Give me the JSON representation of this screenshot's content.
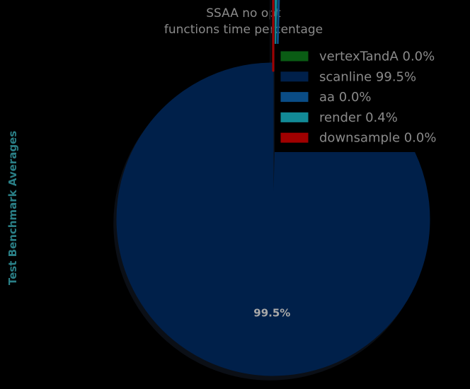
{
  "chart_data": {
    "type": "pie",
    "title": "SSAA no opt",
    "subtitle": "functions time percentage",
    "ylabel": "Test Benchmark Averages",
    "legend_position": "upper-right",
    "start_angle_deg": 90,
    "counterclockwise": true,
    "shadow": true,
    "slices": [
      {
        "name": "vertexTandA",
        "value": 0.0,
        "label": "0.0%",
        "legend": "vertexTandA 0.0%",
        "color": "#0a5c14",
        "explode": true
      },
      {
        "name": "scanline",
        "value": 99.5,
        "label": "99.5%",
        "legend": "scanline 99.5%",
        "color": "#00204a",
        "explode": false
      },
      {
        "name": "aa",
        "value": 0.0,
        "label": "0.0%",
        "legend": "aa 0.0%",
        "color": "#0a4c85",
        "explode": true
      },
      {
        "name": "render",
        "value": 0.4,
        "label": "0.4%",
        "legend": "render 0.4%",
        "color": "#128a96",
        "explode": true
      },
      {
        "name": "downsample",
        "value": 0.0,
        "label": "0.0%",
        "legend": "downsample 0.0%",
        "color": "#a00000",
        "explode": true
      }
    ]
  }
}
